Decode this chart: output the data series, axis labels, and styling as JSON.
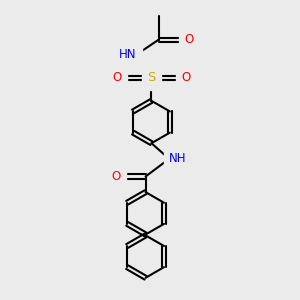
{
  "bg_color": "#ebebeb",
  "atom_colors": {
    "C": "#000000",
    "N": "#0000ff",
    "O": "#ff0000",
    "S": "#ccaa00",
    "H": "#4a9090"
  }
}
